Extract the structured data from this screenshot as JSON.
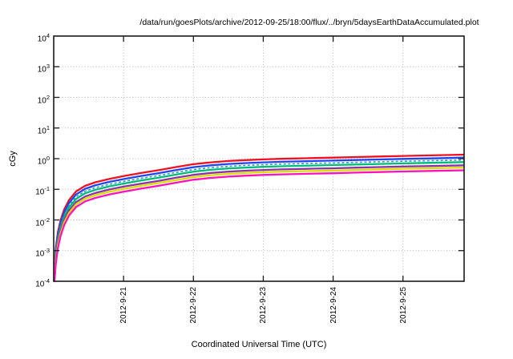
{
  "window": {
    "background": "#ffffff"
  },
  "chart_data": {
    "type": "line",
    "title": "/data/run/goesPlots/archive/2012-09-25/18:00/flux/../bryn/5daysEarthDataAccumulated.plot",
    "xlabel": "Coordinated Universal Time (UTC)",
    "ylabel": "cGy",
    "y_scale": "log10",
    "y_range": [
      0.0001,
      10000
    ],
    "y_ticks": [
      "10^4",
      "10^3",
      "10^2",
      "10^1",
      "10^0",
      "10^-1",
      "10^-2",
      "10^-3",
      "10^-4"
    ],
    "x_range_days": [
      0,
      5.875
    ],
    "x_ticks": [
      {
        "t": 1,
        "label": "2012-9-21"
      },
      {
        "t": 2,
        "label": "2012-9-22"
      },
      {
        "t": 3,
        "label": "2012-9-23"
      },
      {
        "t": 4,
        "label": "2012-9-24"
      },
      {
        "t": 5,
        "label": "2012-9-25"
      }
    ],
    "grid": true,
    "legend": "none",
    "grid_color": "#b8b8b8",
    "frame_color": "#1a1a1a",
    "x_days": [
      0.005,
      0.01,
      0.03,
      0.06,
      0.1,
      0.15,
      0.22,
      0.32,
      0.45,
      0.6,
      0.8,
      1.0,
      1.25,
      1.5,
      1.75,
      2.0,
      2.25,
      2.5,
      2.75,
      3.0,
      3.25,
      3.5,
      3.75,
      4.0,
      4.33,
      4.66,
      5.0,
      5.4,
      5.875
    ],
    "series": [
      {
        "name": "curve-red",
        "color": "#ee1122",
        "dash": "",
        "width": 2.3,
        "values": [
          0.0001,
          0.0002,
          0.0012,
          0.004,
          0.01,
          0.022,
          0.045,
          0.085,
          0.13,
          0.17,
          0.22,
          0.27,
          0.34,
          0.42,
          0.53,
          0.66,
          0.76,
          0.84,
          0.9,
          0.95,
          0.99,
          1.02,
          1.05,
          1.08,
          1.13,
          1.18,
          1.23,
          1.28,
          1.35
        ]
      },
      {
        "name": "curve-blue",
        "color": "#2244ee",
        "dash": "",
        "width": 2.3,
        "values": [
          8e-05,
          0.00016,
          0.00096,
          0.0032,
          0.008,
          0.0176,
          0.036,
          0.068,
          0.104,
          0.136,
          0.176,
          0.216,
          0.272,
          0.336,
          0.424,
          0.528,
          0.608,
          0.672,
          0.72,
          0.76,
          0.792,
          0.816,
          0.84,
          0.864,
          0.904,
          0.944,
          0.984,
          1.02,
          1.08
        ]
      },
      {
        "name": "curve-cyan-dashed",
        "color": "#2299cc",
        "dash": "3 2.6",
        "width": 1.6,
        "values": [
          6.7e-05,
          0.00013,
          0.0008,
          0.0027,
          0.0067,
          0.0147,
          0.03,
          0.057,
          0.087,
          0.114,
          0.147,
          0.181,
          0.228,
          0.281,
          0.355,
          0.442,
          0.509,
          0.563,
          0.603,
          0.637,
          0.663,
          0.683,
          0.704,
          0.724,
          0.757,
          0.791,
          0.824,
          0.858,
          0.905
        ]
      },
      {
        "name": "curve-green",
        "color": "#00bb77",
        "dash": "",
        "width": 2.3,
        "values": [
          5.7e-05,
          0.00011,
          0.00068,
          0.0023,
          0.0057,
          0.0125,
          0.0257,
          0.0485,
          0.0741,
          0.0969,
          0.125,
          0.154,
          0.194,
          0.239,
          0.302,
          0.376,
          0.433,
          0.479,
          0.513,
          0.542,
          0.564,
          0.581,
          0.599,
          0.616,
          0.644,
          0.673,
          0.701,
          0.73,
          0.77
        ]
      },
      {
        "name": "curve-purple",
        "color": "#8833aa",
        "dash": "",
        "width": 2.3,
        "values": [
          4.5e-05,
          9e-05,
          0.00054,
          0.0018,
          0.0045,
          0.0099,
          0.0203,
          0.0383,
          0.0585,
          0.0765,
          0.099,
          0.122,
          0.153,
          0.189,
          0.239,
          0.297,
          0.342,
          0.378,
          0.405,
          0.428,
          0.446,
          0.459,
          0.473,
          0.486,
          0.509,
          0.531,
          0.554,
          0.576,
          0.608
        ]
      },
      {
        "name": "curve-yellow",
        "color": "#dddd00",
        "dash": "",
        "width": 2.3,
        "values": [
          3.8e-05,
          7.6e-05,
          0.00046,
          0.0015,
          0.0038,
          0.0084,
          0.0171,
          0.0323,
          0.0494,
          0.0646,
          0.0836,
          0.103,
          0.129,
          0.16,
          0.201,
          0.251,
          0.289,
          0.319,
          0.342,
          0.361,
          0.376,
          0.388,
          0.399,
          0.41,
          0.429,
          0.448,
          0.467,
          0.486,
          0.513
        ]
      },
      {
        "name": "curve-magenta",
        "color": "#ff11bb",
        "dash": "",
        "width": 2.3,
        "values": [
          3.1e-05,
          6.2e-05,
          0.00037,
          0.0012,
          0.0031,
          0.0068,
          0.014,
          0.0264,
          0.0403,
          0.0527,
          0.0682,
          0.0837,
          0.105,
          0.13,
          0.164,
          0.205,
          0.236,
          0.26,
          0.279,
          0.295,
          0.307,
          0.316,
          0.326,
          0.335,
          0.35,
          0.366,
          0.381,
          0.397,
          0.419
        ]
      }
    ]
  }
}
